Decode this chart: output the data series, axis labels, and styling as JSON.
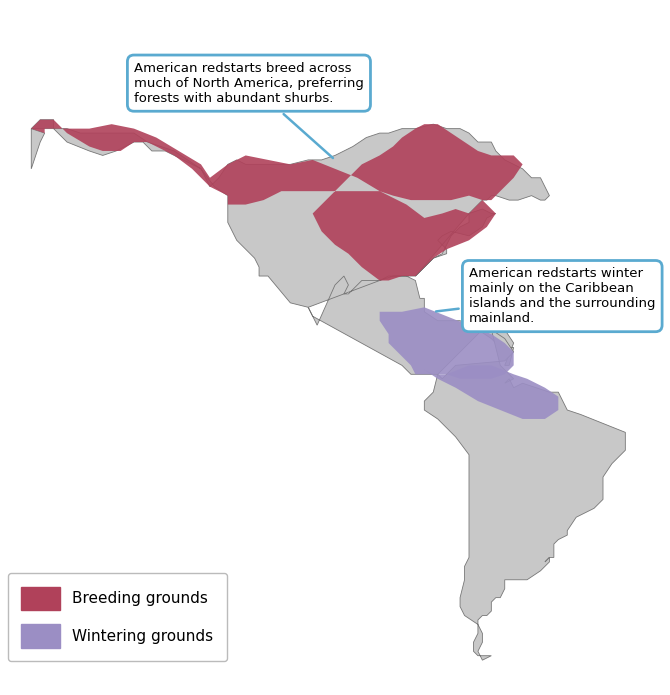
{
  "breeding_color": "#B0415A",
  "wintering_color": "#9B8EC4",
  "land_color": "#C8C8C8",
  "ocean_color": "#FFFFFF",
  "border_color": "#777777",
  "border_lw": 0.6,
  "annotation1_text": "American redstarts breed across\nmuch of North America, preferring\nforests with abundant shurbs.",
  "annotation2_text": "American redstarts winter\nmainly on the Caribbean\nislands and the surrounding\nmainland.",
  "legend_breeding": "Breeding grounds",
  "legend_wintering": "Wintering grounds",
  "box_edgecolor": "#5AAAD0",
  "box_facecolor": "#FFFFFF",
  "figsize": [
    6.7,
    6.95
  ],
  "dpi": 100,
  "xlim": [
    -175,
    -25
  ],
  "ylim": [
    -58,
    86
  ]
}
